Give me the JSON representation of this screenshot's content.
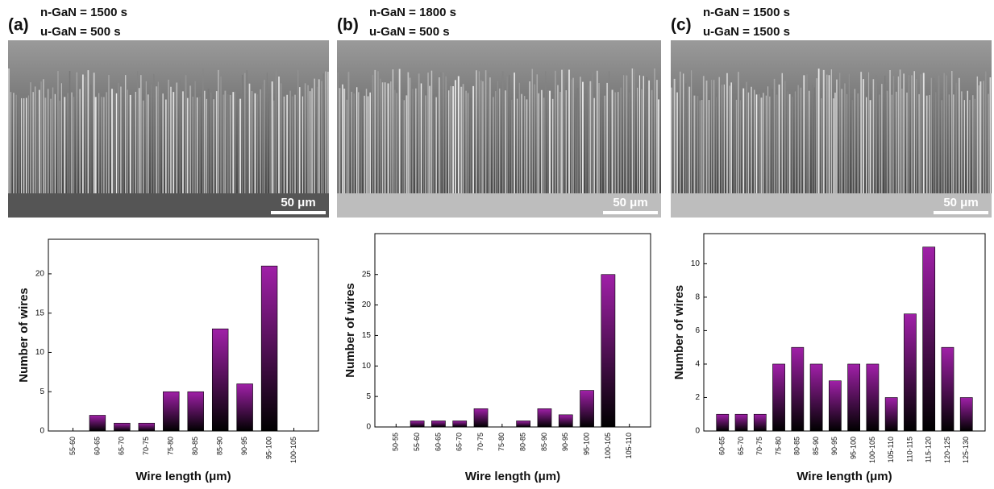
{
  "panels": [
    {
      "label": "(a)",
      "lines": [
        "n-GaN = 1500 s",
        "u-GaN = 500 s"
      ],
      "scale_bar": "50 μm"
    },
    {
      "label": "(b)",
      "lines": [
        "n-GaN = 1800 s",
        "u-GaN = 500 s"
      ],
      "scale_bar": "50 μm"
    },
    {
      "label": "(c)",
      "lines": [
        "n-GaN = 1500 s",
        "u-GaN = 1500 s"
      ],
      "scale_bar": "50 μm"
    }
  ],
  "chart_data": [
    {
      "type": "bar",
      "xlabel": "Wire length (μm)",
      "ylabel": "Number of wires",
      "color": "#a020a8",
      "categories": [
        "55-60",
        "60-65",
        "65-70",
        "70-75",
        "75-80",
        "80-85",
        "85-90",
        "90-95",
        "95-100",
        "100-105"
      ],
      "values": [
        0,
        2,
        1,
        1,
        5,
        5,
        13,
        6,
        21,
        0
      ],
      "ylim": [
        0,
        24.4
      ],
      "yticks": [
        0,
        5,
        10,
        15,
        20
      ]
    },
    {
      "type": "bar",
      "xlabel": "Wire length (μm)",
      "ylabel": "Number of wires",
      "color": "#a020a8",
      "categories": [
        "50-55",
        "55-60",
        "60-65",
        "65-70",
        "70-75",
        "75-80",
        "80-85",
        "85-90",
        "90-95",
        "95-100",
        "100-105",
        "105-110"
      ],
      "values": [
        0,
        1,
        1,
        1,
        3,
        0,
        1,
        3,
        2,
        6,
        25,
        0
      ],
      "ylim": [
        0,
        31.7
      ],
      "yticks": [
        0,
        5,
        10,
        15,
        20,
        25
      ]
    },
    {
      "type": "bar",
      "xlabel": "Wire length (μm)",
      "ylabel": "Number of wires",
      "color": "#a020a8",
      "categories": [
        "60-65",
        "65-70",
        "70-75",
        "75-80",
        "80-85",
        "85-90",
        "90-95",
        "95-100",
        "100-105",
        "105-110",
        "110-115",
        "115-120",
        "120-125",
        "125-130"
      ],
      "values": [
        1,
        1,
        1,
        4,
        5,
        4,
        3,
        4,
        4,
        2,
        7,
        11,
        5,
        2
      ],
      "ylim": [
        0,
        11.8
      ],
      "yticks": [
        0,
        2,
        4,
        6,
        8,
        10
      ]
    }
  ]
}
